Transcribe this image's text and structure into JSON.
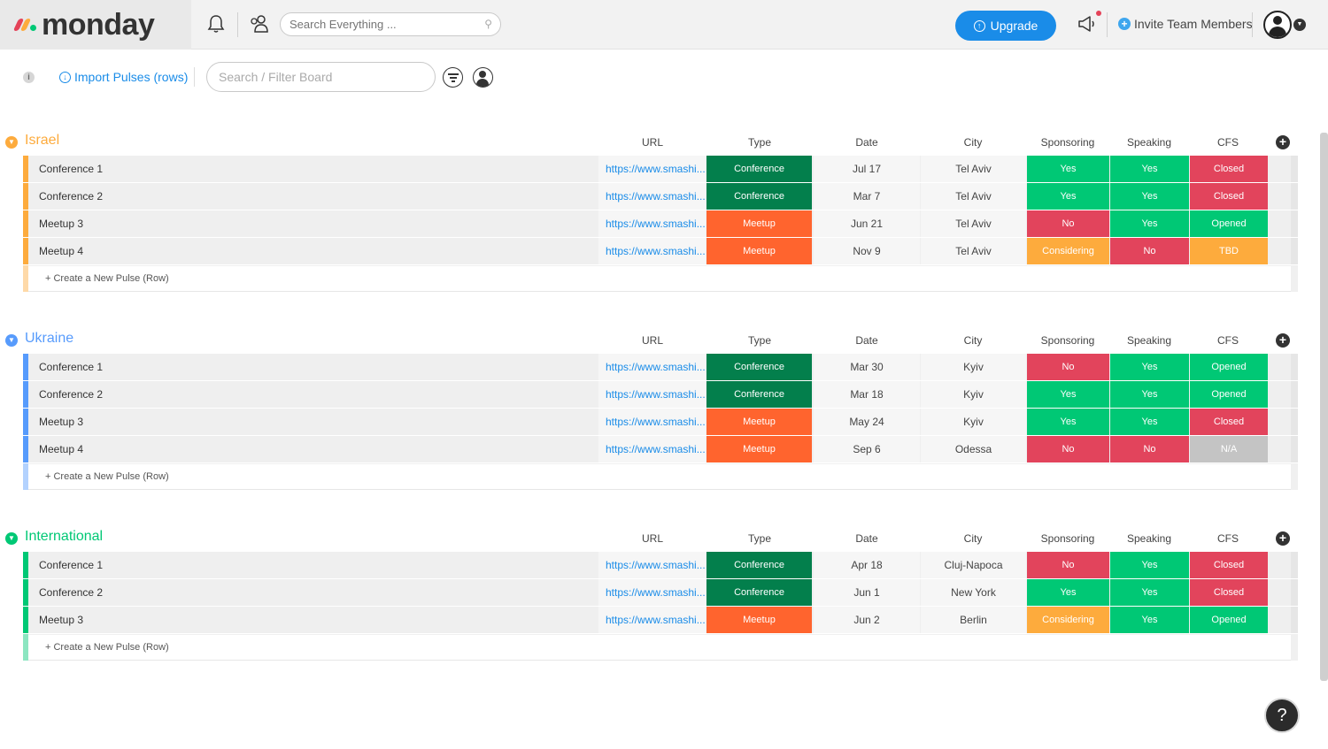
{
  "app": {
    "logo_text": "monday",
    "logo_colors": [
      "#e44258",
      "#fdab3d",
      "#00c875"
    ]
  },
  "topbar": {
    "search_placeholder": "Search Everything ...",
    "upgrade_label": "Upgrade",
    "invite_label": "Invite Team Members",
    "accent": "#1a8ce8"
  },
  "toolbar": {
    "info_label": "i",
    "import_label": "Import Pulses (rows)",
    "board_search_placeholder": "Search / Filter Board"
  },
  "columns": [
    "URL",
    "Type",
    "Date",
    "City",
    "Sponsoring",
    "Speaking",
    "CFS"
  ],
  "create_label": "+ Create a New Pulse (Row)",
  "status_colors": {
    "Conference": "#037f4c",
    "Meetup": "#ff642e",
    "Yes": "#00c875",
    "No": "#e2445c",
    "Closed": "#e2445c",
    "Opened": "#00c875",
    "Considering": "#fdab3d",
    "TBD": "#fdab3d",
    "N/A": "#c4c4c4"
  },
  "groups": [
    {
      "title": "Israel",
      "color": "#fdab3d",
      "rows": [
        {
          "name": "Conference 1",
          "url": "https://www.smashi...",
          "type": "Conference",
          "date": "Jul 17",
          "city": "Tel Aviv",
          "sponsoring": "Yes",
          "speaking": "Yes",
          "cfs": "Closed"
        },
        {
          "name": "Conference 2",
          "url": "https://www.smashi...",
          "type": "Conference",
          "date": "Mar 7",
          "city": "Tel Aviv",
          "sponsoring": "Yes",
          "speaking": "Yes",
          "cfs": "Closed"
        },
        {
          "name": "Meetup 3",
          "url": "https://www.smashi...",
          "type": "Meetup",
          "date": "Jun 21",
          "city": "Tel Aviv",
          "sponsoring": "No",
          "speaking": "Yes",
          "cfs": "Opened"
        },
        {
          "name": "Meetup 4",
          "url": "https://www.smashi...",
          "type": "Meetup",
          "date": "Nov 9",
          "city": "Tel Aviv",
          "sponsoring": "Considering",
          "speaking": "No",
          "cfs": "TBD"
        }
      ]
    },
    {
      "title": "Ukraine",
      "color": "#579bfc",
      "rows": [
        {
          "name": "Conference 1",
          "url": "https://www.smashi...",
          "type": "Conference",
          "date": "Mar 30",
          "city": "Kyiv",
          "sponsoring": "No",
          "speaking": "Yes",
          "cfs": "Opened"
        },
        {
          "name": "Conference 2",
          "url": "https://www.smashi...",
          "type": "Conference",
          "date": "Mar 18",
          "city": "Kyiv",
          "sponsoring": "Yes",
          "speaking": "Yes",
          "cfs": "Opened"
        },
        {
          "name": "Meetup 3",
          "url": "https://www.smashi...",
          "type": "Meetup",
          "date": "May 24",
          "city": "Kyiv",
          "sponsoring": "Yes",
          "speaking": "Yes",
          "cfs": "Closed"
        },
        {
          "name": "Meetup 4",
          "url": "https://www.smashi...",
          "type": "Meetup",
          "date": "Sep 6",
          "city": "Odessa",
          "sponsoring": "No",
          "speaking": "No",
          "cfs": "N/A"
        }
      ]
    },
    {
      "title": "International",
      "color": "#00c875",
      "rows": [
        {
          "name": "Conference 1",
          "url": "https://www.smashi...",
          "type": "Conference",
          "date": "Apr 18",
          "city": "Cluj-Napoca",
          "sponsoring": "No",
          "speaking": "Yes",
          "cfs": "Closed"
        },
        {
          "name": "Conference 2",
          "url": "https://www.smashi...",
          "type": "Conference",
          "date": "Jun 1",
          "city": "New York",
          "sponsoring": "Yes",
          "speaking": "Yes",
          "cfs": "Closed"
        },
        {
          "name": "Meetup 3",
          "url": "https://www.smashi...",
          "type": "Meetup",
          "date": "Jun 2",
          "city": "Berlin",
          "sponsoring": "Considering",
          "speaking": "Yes",
          "cfs": "Opened"
        }
      ]
    }
  ],
  "help_label": "?"
}
